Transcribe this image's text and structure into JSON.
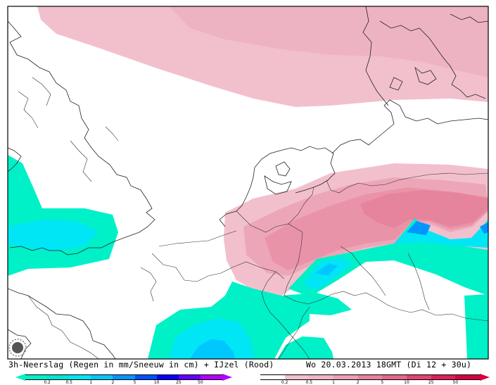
{
  "map": {
    "caption_left": "3h-Neerslag (Regen in mm/Sneeuw in cm) + IJzel (Rood)",
    "caption_right": "Wo 20.03.2013 18GMT (Di 12 + 30u)"
  },
  "legend_precip": {
    "ticks": [
      "0.2",
      "0.5",
      "1",
      "2",
      "5",
      "10",
      "25",
      "50"
    ],
    "colors": [
      "#00f0c8",
      "#00e6d2",
      "#00e6f5",
      "#00c8ff",
      "#0096ff",
      "#0050ff",
      "#0a00ff",
      "#6400ff",
      "#b400ff"
    ]
  },
  "legend_ice": {
    "ticks": [
      "0.2",
      "0.5",
      "1",
      "2",
      "5",
      "10",
      "25",
      "50"
    ],
    "colors": [
      "#ffffff",
      "#f2c0cc",
      "#f0b4c4",
      "#ec9eb4",
      "#e8829e",
      "#e46888",
      "#e04470",
      "#dc2058",
      "#d40040"
    ]
  }
}
